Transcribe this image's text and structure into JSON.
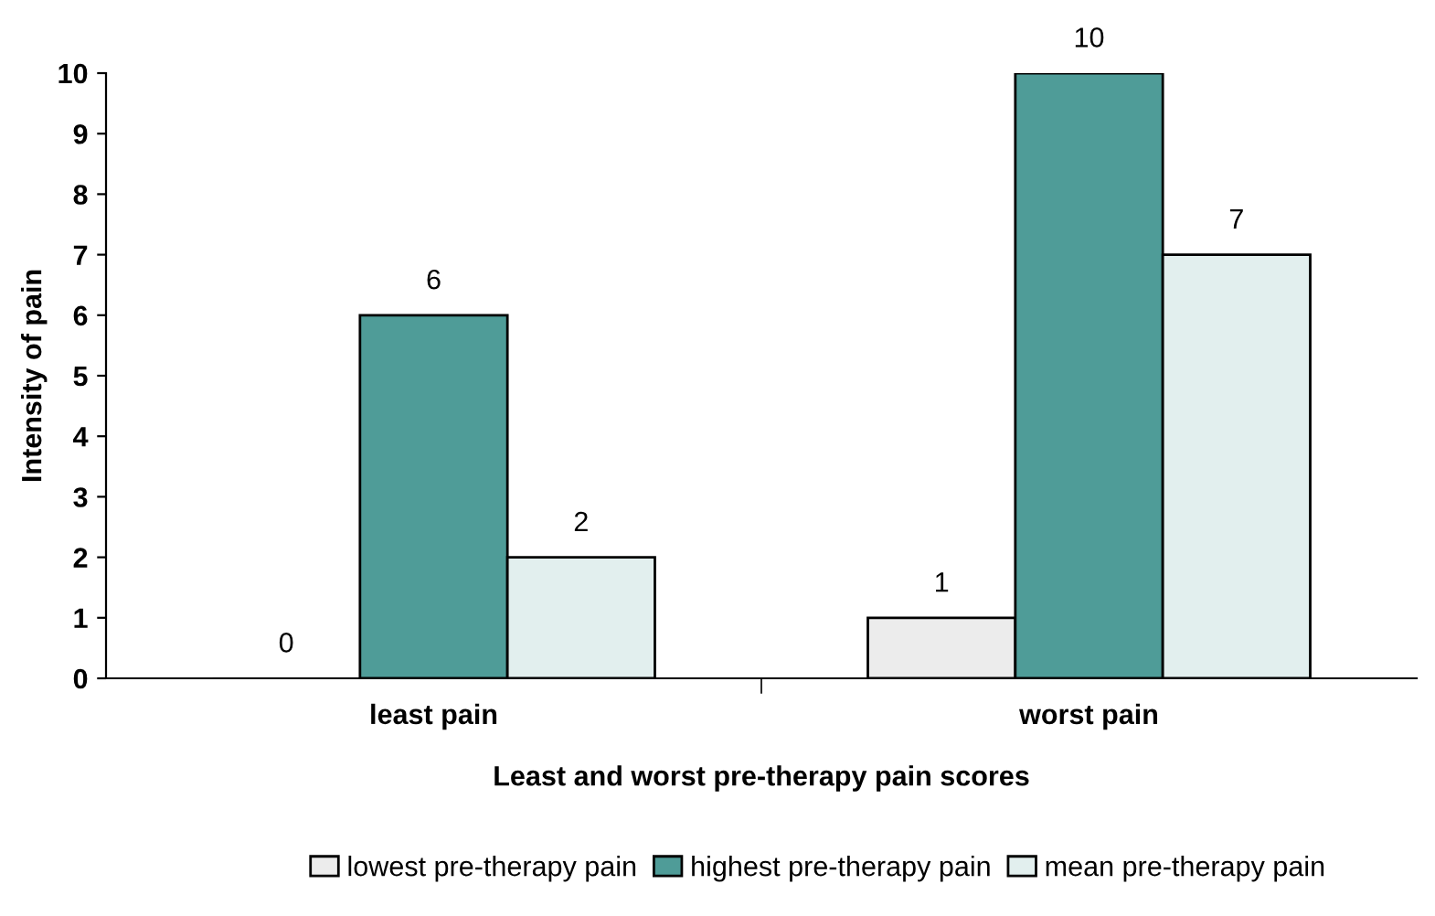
{
  "chart_data": {
    "type": "bar",
    "xlabel": "Least and worst pre-therapy pain scores",
    "ylabel": "Intensity of pain",
    "categories": [
      "least pain",
      "worst pain"
    ],
    "series": [
      {
        "name": "lowest pre-therapy pain",
        "color": "#ececec",
        "values": [
          0,
          1
        ]
      },
      {
        "name": "highest pre-therapy pain",
        "color": "#4f9c98",
        "values": [
          6,
          10
        ]
      },
      {
        "name": "mean pre-therapy pain",
        "color": "#e2efee",
        "values": [
          2,
          7
        ]
      }
    ],
    "ylim": [
      0,
      10
    ],
    "yticks": [
      0,
      1,
      2,
      3,
      4,
      5,
      6,
      7,
      8,
      9,
      10
    ],
    "data_labels": true,
    "legend": "bottom",
    "grid": false
  }
}
